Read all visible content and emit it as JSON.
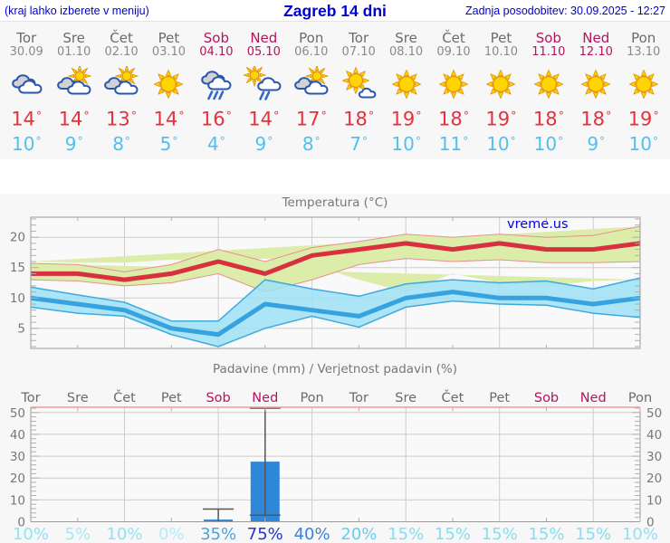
{
  "header": {
    "left": "(kraj lahko izberete v meniju)",
    "title": "Zagreb 14 dni",
    "updated": "Zadnja posodobitev: 30.09.2025 - 12:27"
  },
  "watermark": "vreme.us",
  "units": {
    "degree": "°",
    "percent": "%"
  },
  "colors": {
    "header_text": "#0000cc",
    "day_name": "#6b6b6b",
    "day_date": "#8a8a8a",
    "weekend": "#b5135e",
    "tmax": "#e8303d",
    "tmin": "#4fc0f0",
    "chart_text": "#777777",
    "grid": "#cdcdcd",
    "axis": "#9a9a9a",
    "minor_tick": "#b0b0b0",
    "temp_max_line": "#d8303f",
    "temp_max_band": "#dcedaa",
    "temp_max_band_edge": "#e89090",
    "temp_min_line": "#36a3e0",
    "temp_min_band": "#9fe2f4",
    "temp_min_band_edge": "#3fa9e0",
    "precip_bar": "#2e87d9",
    "whisker": "#555555",
    "precip_top_border": "#f49a9a",
    "watermark_color": "#0000ee"
  },
  "forecast": {
    "days": [
      {
        "name": "Tor",
        "date": "30.09",
        "weekend": false,
        "icon": "cloudy",
        "tmax": 14,
        "tmin": 10
      },
      {
        "name": "Sre",
        "date": "01.10",
        "weekend": false,
        "icon": "partly-cloudy",
        "tmax": 14,
        "tmin": 9
      },
      {
        "name": "Čet",
        "date": "02.10",
        "weekend": false,
        "icon": "partly-cloudy",
        "tmax": 13,
        "tmin": 8
      },
      {
        "name": "Pet",
        "date": "03.10",
        "weekend": false,
        "icon": "sunny",
        "tmax": 14,
        "tmin": 5
      },
      {
        "name": "Sob",
        "date": "04.10",
        "weekend": true,
        "icon": "rain",
        "tmax": 16,
        "tmin": 4
      },
      {
        "name": "Ned",
        "date": "05.10",
        "weekend": true,
        "icon": "sun-rain",
        "tmax": 14,
        "tmin": 9
      },
      {
        "name": "Pon",
        "date": "06.10",
        "weekend": false,
        "icon": "partly-cloudy",
        "tmax": 17,
        "tmin": 8
      },
      {
        "name": "Tor",
        "date": "07.10",
        "weekend": false,
        "icon": "mostly-sunny",
        "tmax": 18,
        "tmin": 7
      },
      {
        "name": "Sre",
        "date": "08.10",
        "weekend": false,
        "icon": "sunny",
        "tmax": 19,
        "tmin": 10
      },
      {
        "name": "Čet",
        "date": "09.10",
        "weekend": false,
        "icon": "sunny",
        "tmax": 18,
        "tmin": 11
      },
      {
        "name": "Pet",
        "date": "10.10",
        "weekend": false,
        "icon": "sunny",
        "tmax": 19,
        "tmin": 10
      },
      {
        "name": "Sob",
        "date": "11.10",
        "weekend": true,
        "icon": "sunny",
        "tmax": 18,
        "tmin": 10
      },
      {
        "name": "Ned",
        "date": "12.10",
        "weekend": true,
        "icon": "sunny",
        "tmax": 18,
        "tmin": 9
      },
      {
        "name": "Pon",
        "date": "13.10",
        "weekend": false,
        "icon": "sunny",
        "tmax": 19,
        "tmin": 10
      }
    ]
  },
  "chart_data": [
    {
      "type": "line",
      "title": "Temperatura (°C)",
      "categories": [
        "Tor",
        "Sre",
        "Čet",
        "Pet",
        "Sob",
        "Ned",
        "Pon",
        "Tor",
        "Sre",
        "Čet",
        "Pet",
        "Sob",
        "Ned",
        "Pon"
      ],
      "series": [
        {
          "name": "max_temp",
          "values": [
            14,
            14,
            13,
            14,
            16,
            14,
            17,
            18,
            19,
            18,
            19,
            18,
            18,
            19
          ]
        },
        {
          "name": "max_band_upper",
          "values": [
            15.7,
            15.5,
            14.3,
            15.5,
            18,
            16,
            18.3,
            19.3,
            20.5,
            20,
            20.5,
            20,
            20.3,
            21.8
          ]
        },
        {
          "name": "max_band_lower",
          "values": [
            13,
            12.8,
            12,
            12.5,
            14,
            11,
            13,
            15.5,
            16.5,
            16,
            16.3,
            15.8,
            15.8,
            16
          ]
        },
        {
          "name": "min_temp",
          "values": [
            10,
            9,
            8,
            5,
            4,
            9,
            8,
            7,
            10,
            11,
            10,
            10,
            9,
            10
          ]
        },
        {
          "name": "min_band_upper",
          "values": [
            11.8,
            10.5,
            9.3,
            6.2,
            6.2,
            13,
            11.5,
            10.3,
            12.3,
            13,
            12.5,
            12.8,
            11.5,
            13.3
          ]
        },
        {
          "name": "min_band_lower",
          "values": [
            8.5,
            7.5,
            7,
            4,
            2,
            5,
            7,
            5.2,
            8.5,
            9.5,
            9,
            8.8,
            7.5,
            6.8
          ]
        }
      ],
      "ylim": [
        1.7,
        23.3
      ],
      "yticks": [
        5,
        10,
        15,
        20
      ],
      "grid": true,
      "legend": "none",
      "watermark": "vreme.us"
    },
    {
      "type": "bar",
      "title": "Padavine (mm) / Verjetnost padavin (%)",
      "categories": [
        "Tor",
        "Sre",
        "Čet",
        "Pet",
        "Sob",
        "Ned",
        "Pon",
        "Tor",
        "Sre",
        "Čet",
        "Pet",
        "Sob",
        "Ned",
        "Pon"
      ],
      "weekend": [
        false,
        false,
        false,
        false,
        true,
        true,
        false,
        false,
        false,
        false,
        false,
        true,
        true,
        false
      ],
      "values": [
        0,
        0,
        0,
        0,
        1,
        27.5,
        0,
        0,
        0,
        0,
        0,
        0,
        0,
        0
      ],
      "whiskers": [
        null,
        null,
        null,
        null,
        {
          "low": 0,
          "high": 5.8
        },
        {
          "low": 3,
          "high": 52
        },
        null,
        null,
        null,
        null,
        null,
        null,
        null,
        null
      ],
      "probabilities": [
        10,
        5,
        10,
        0,
        35,
        75,
        40,
        20,
        15,
        15,
        15,
        15,
        15,
        10
      ],
      "prob_colors": [
        "#8fe3f4",
        "#a5e9f6",
        "#8fe3f4",
        "#b2eefa",
        "#4aa3e0",
        "#2336c8",
        "#3b82d8",
        "#68cdf0",
        "#83dff3",
        "#83dff3",
        "#83dff3",
        "#83dff3",
        "#83dff3",
        "#8fe3f4"
      ],
      "ylim": [
        0,
        52.4
      ],
      "yticks": [
        0,
        10,
        20,
        30,
        40,
        50
      ],
      "grid": true,
      "legend": "none"
    }
  ]
}
